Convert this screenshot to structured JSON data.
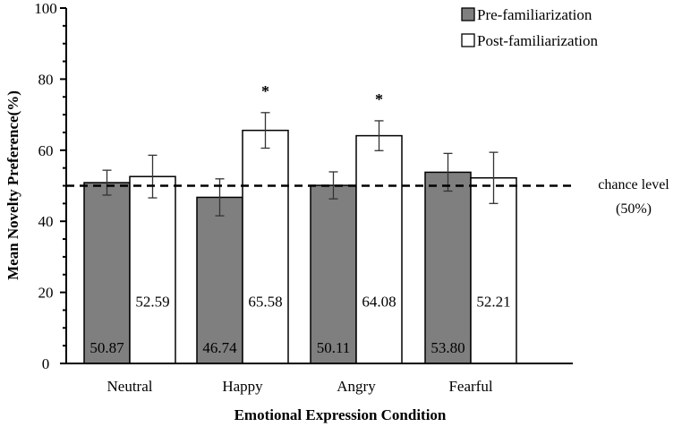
{
  "chart_data": {
    "type": "bar",
    "title": "",
    "xlabel": "Emotional Expression Condition",
    "ylabel": "Mean Novelty Preference(%)",
    "ylim": [
      0,
      100
    ],
    "yticks": [
      0,
      20,
      40,
      60,
      80,
      100
    ],
    "categories": [
      "Neutral",
      "Happy",
      "Angry",
      "Fearful"
    ],
    "series": [
      {
        "name": "Pre-familiarization",
        "color": "#7f7f7f",
        "values": [
          50.87,
          46.74,
          50.11,
          53.8
        ],
        "value_labels": [
          "50.87",
          "46.74",
          "50.11",
          "53.80"
        ],
        "error": [
          3.5,
          5.2,
          3.8,
          5.3
        ]
      },
      {
        "name": "Post-familiarization",
        "color": "#ffffff",
        "values": [
          52.59,
          65.58,
          64.08,
          52.21
        ],
        "value_labels": [
          "52.59",
          "65.58",
          "64.08",
          "52.21"
        ],
        "error": [
          6.0,
          5.0,
          4.2,
          7.2
        ]
      }
    ],
    "significance": [
      {
        "category": "Happy",
        "series": "Post-familiarization",
        "mark": "*"
      },
      {
        "category": "Angry",
        "series": "Post-familiarization",
        "mark": "*"
      }
    ],
    "reference_line": {
      "y": 50,
      "style": "dashed",
      "label_line1": "chance level",
      "label_line2": "(50%)"
    },
    "legend": {
      "position": "top-right"
    },
    "grid": false
  }
}
